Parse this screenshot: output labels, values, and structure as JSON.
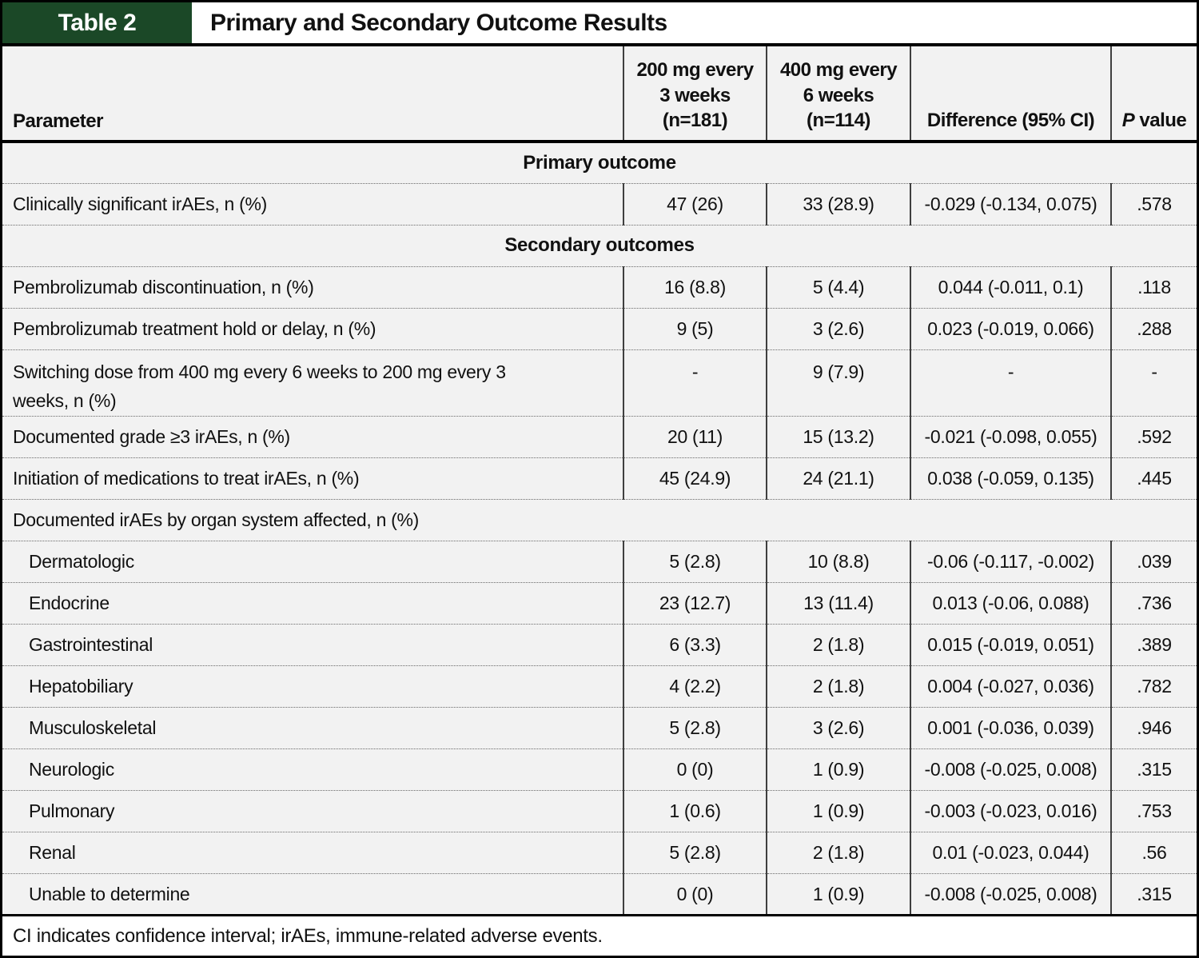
{
  "header": {
    "tag": "Table 2",
    "title": "Primary and Secondary Outcome Results"
  },
  "colors": {
    "accent_green": "#1b4827",
    "row_background": "#f2f2f2"
  },
  "columns": {
    "parameter": "Parameter",
    "col_200": [
      "200 mg every",
      "3 weeks",
      "(n=181)"
    ],
    "col_400": [
      "400 mg every",
      "6 weeks",
      "(n=114)"
    ],
    "difference": "Difference (95% CI)",
    "p_italic": "P",
    "p_rest": " value"
  },
  "sections": {
    "primary": "Primary outcome",
    "secondary": "Secondary outcomes"
  },
  "organ_header": "Documented irAEs by organ system affected, n (%)",
  "rows": [
    {
      "label": "Clinically significant irAEs, n (%)",
      "v1": "47 (26)",
      "v2": "33 (28.9)",
      "diff": "-0.029 (-0.134, 0.075)",
      "p": ".578"
    },
    {
      "label": "Pembrolizumab discontinuation, n (%)",
      "v1": "16 (8.8)",
      "v2": "5 (4.4)",
      "diff": "0.044 (-0.011, 0.1)",
      "p": ".118"
    },
    {
      "label": "Pembrolizumab treatment hold or delay, n (%)",
      "v1": "9 (5)",
      "v2": "3 (2.6)",
      "diff": "0.023 (-0.019, 0.066)",
      "p": ".288"
    },
    {
      "label": "Switching dose from 400 mg every 6 weeks to 200 mg every 3 weeks, n (%)",
      "v1": "-",
      "v2": "9 (7.9)",
      "diff": "-",
      "p": "-"
    },
    {
      "label": "Documented grade ≥3 irAEs, n (%)",
      "v1": "20 (11)",
      "v2": "15 (13.2)",
      "diff": "-0.021 (-0.098, 0.055)",
      "p": ".592"
    },
    {
      "label": "Initiation of medications to treat irAEs, n (%)",
      "v1": "45 (24.9)",
      "v2": "24 (21.1)",
      "diff": "0.038 (-0.059, 0.135)",
      "p": ".445"
    },
    {
      "label": "Dermatologic",
      "v1": "5 (2.8)",
      "v2": "10 (8.8)",
      "diff": "-0.06 (-0.117, -0.002)",
      "p": ".039"
    },
    {
      "label": "Endocrine",
      "v1": "23 (12.7)",
      "v2": "13 (11.4)",
      "diff": "0.013 (-0.06, 0.088)",
      "p": ".736"
    },
    {
      "label": "Gastrointestinal",
      "v1": "6 (3.3)",
      "v2": "2 (1.8)",
      "diff": "0.015 (-0.019, 0.051)",
      "p": ".389"
    },
    {
      "label": "Hepatobiliary",
      "v1": "4 (2.2)",
      "v2": "2 (1.8)",
      "diff": "0.004 (-0.027, 0.036)",
      "p": ".782"
    },
    {
      "label": "Musculoskeletal",
      "v1": "5 (2.8)",
      "v2": "3 (2.6)",
      "diff": "0.001 (-0.036, 0.039)",
      "p": ".946"
    },
    {
      "label": "Neurologic",
      "v1": "0 (0)",
      "v2": "1 (0.9)",
      "diff": "-0.008 (-0.025, 0.008)",
      "p": ".315"
    },
    {
      "label": "Pulmonary",
      "v1": "1 (0.6)",
      "v2": "1 (0.9)",
      "diff": "-0.003 (-0.023, 0.016)",
      "p": ".753"
    },
    {
      "label": "Renal",
      "v1": "5 (2.8)",
      "v2": "2 (1.8)",
      "diff": "0.01 (-0.023, 0.044)",
      "p": ".56"
    },
    {
      "label": "Unable to determine",
      "v1": "0 (0)",
      "v2": "1 (0.9)",
      "diff": "-0.008 (-0.025, 0.008)",
      "p": ".315"
    }
  ],
  "footnote": "CI indicates confidence interval; irAEs, immune-related adverse events."
}
